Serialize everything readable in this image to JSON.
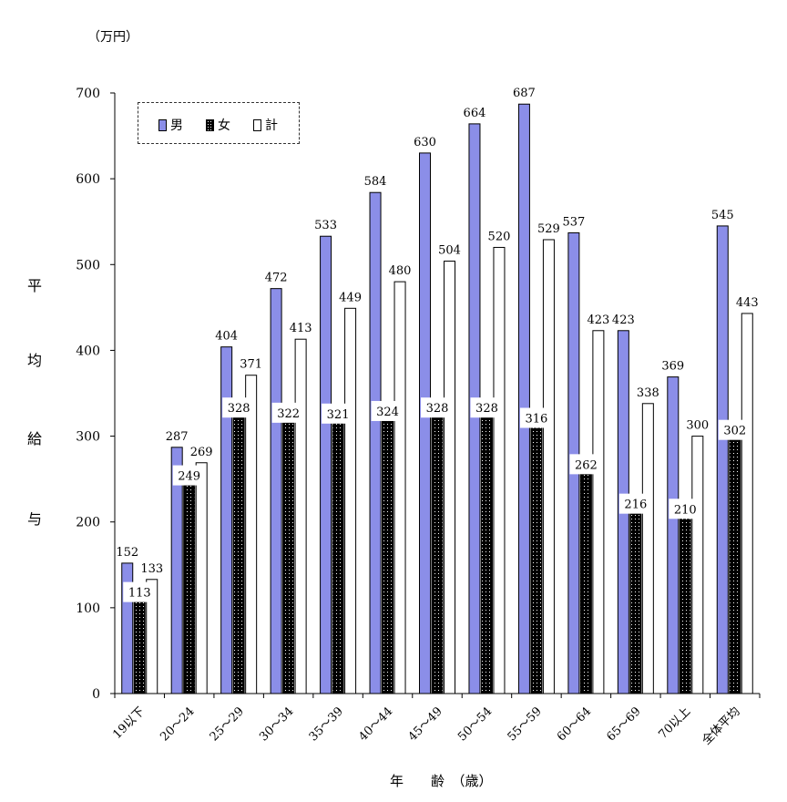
{
  "chart_data": {
    "type": "bar",
    "unit_label": "（万円）",
    "ylabel_chars": [
      "平",
      "均",
      "給",
      "与"
    ],
    "xlabel": "年　　齢　（歳）",
    "ylim": [
      0,
      700
    ],
    "yticks": [
      0,
      100,
      200,
      300,
      400,
      500,
      600,
      700
    ],
    "grid": false,
    "legend_position": "top-left",
    "categories": [
      "19以下",
      "20～24",
      "25～29",
      "30～34",
      "35～39",
      "40～44",
      "45～49",
      "50～54",
      "55～59",
      "60～64",
      "65～69",
      "70以上",
      "全体平均"
    ],
    "series": [
      {
        "name": "男",
        "color": "#8b8ee8",
        "pattern": "solid",
        "values": [
          152,
          287,
          404,
          472,
          533,
          584,
          630,
          664,
          687,
          537,
          423,
          369,
          545
        ]
      },
      {
        "name": "女",
        "color": "#000000",
        "pattern": "dotted",
        "values": [
          113,
          249,
          328,
          322,
          321,
          324,
          328,
          328,
          316,
          262,
          216,
          210,
          302
        ]
      },
      {
        "name": "計",
        "color": "#ffffff",
        "pattern": "outline",
        "values": [
          133,
          269,
          371,
          413,
          449,
          480,
          504,
          520,
          529,
          423,
          338,
          300,
          443
        ]
      }
    ]
  }
}
